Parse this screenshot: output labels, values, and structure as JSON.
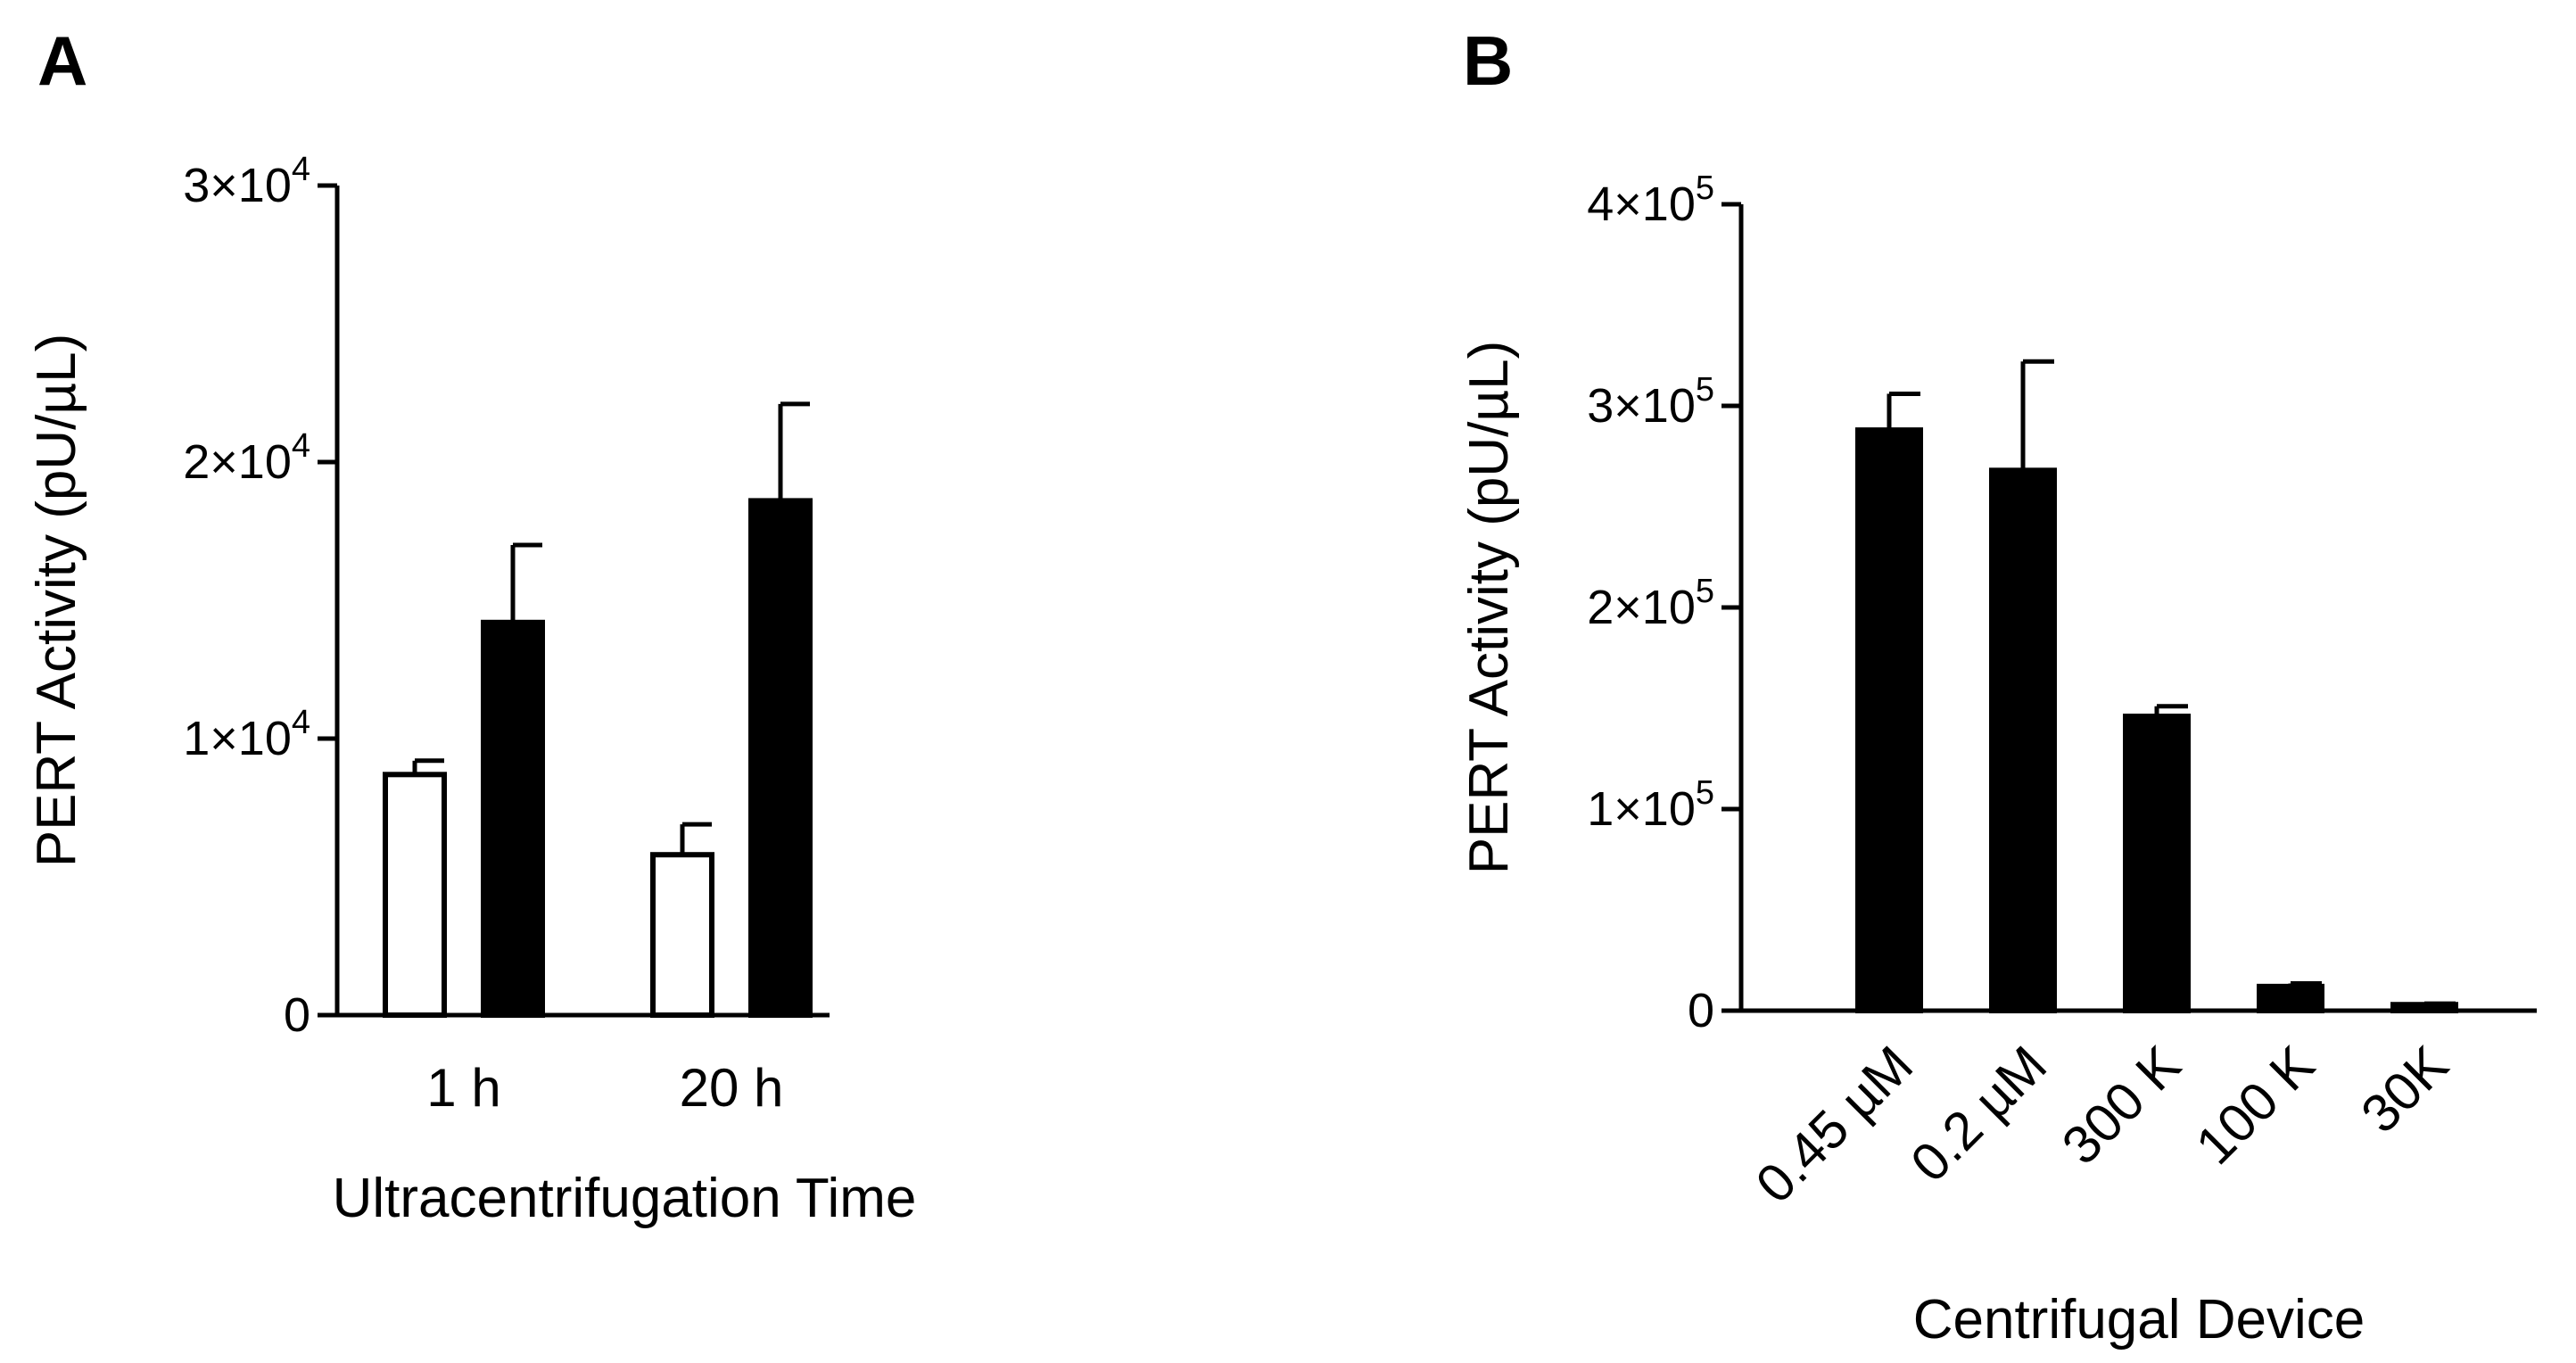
{
  "chart_data": [
    {
      "panel": "A",
      "type": "bar",
      "xlabel": "Ultracentrifugation Time",
      "ylabel": "PERT Activity (pU/µL)",
      "categories": [
        "1 h",
        "20 h"
      ],
      "ylim": [
        0,
        30000
      ],
      "yticks": [
        {
          "value": 0,
          "mantissa": "0",
          "exponent": ""
        },
        {
          "value": 10000,
          "mantissa": "1×10",
          "exponent": "4"
        },
        {
          "value": 20000,
          "mantissa": "2×10",
          "exponent": "4"
        },
        {
          "value": 30000,
          "mantissa": "3×10",
          "exponent": "4"
        }
      ],
      "series": [
        {
          "fill": "#ffffff",
          "values": [
            8700,
            5800
          ],
          "errors": [
            500,
            1100
          ]
        },
        {
          "fill": "#000000",
          "values": [
            14200,
            18600
          ],
          "errors": [
            2800,
            3500
          ]
        }
      ],
      "grid": false,
      "legend": "none"
    },
    {
      "panel": "B",
      "type": "bar",
      "xlabel": "Centrifugal Device",
      "ylabel": "PERT Activity (pU/µL)",
      "categories": [
        "0.45 µM",
        "0.2 µM",
        "300 K",
        "100 K",
        "30K"
      ],
      "ylim": [
        0,
        400000
      ],
      "yticks": [
        {
          "value": 0,
          "mantissa": "0",
          "exponent": ""
        },
        {
          "value": 100000,
          "mantissa": "1×10",
          "exponent": "5"
        },
        {
          "value": 200000,
          "mantissa": "2×10",
          "exponent": "5"
        },
        {
          "value": 300000,
          "mantissa": "3×10",
          "exponent": "5"
        },
        {
          "value": 400000,
          "mantissa": "4×10",
          "exponent": "5"
        }
      ],
      "series": [
        {
          "fill": "#000000",
          "values": [
            288000,
            268000,
            146000,
            12000,
            3000
          ],
          "errors": [
            18000,
            54000,
            5000,
            1500,
            500
          ]
        }
      ],
      "grid": false,
      "legend": "none"
    }
  ]
}
